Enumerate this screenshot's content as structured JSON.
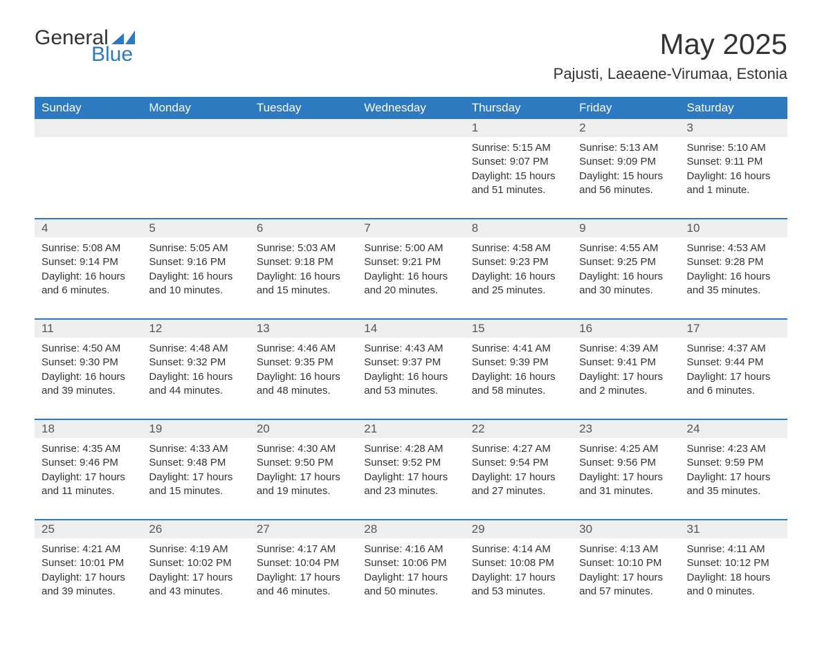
{
  "logo": {
    "part1": "General",
    "part2": "Blue"
  },
  "title": "May 2025",
  "location": "Pajusti, Laeaene-Virumaa, Estonia",
  "colors": {
    "header_bg": "#2e7ac0",
    "header_text": "#ffffff",
    "daynum_bg": "#eeeeee",
    "daynum_text": "#555555",
    "body_text": "#333333",
    "row_border": "#2e7ac0",
    "logo_accent": "#2e7ac0",
    "background": "#ffffff"
  },
  "day_headers": [
    "Sunday",
    "Monday",
    "Tuesday",
    "Wednesday",
    "Thursday",
    "Friday",
    "Saturday"
  ],
  "weeks": [
    [
      null,
      null,
      null,
      null,
      {
        "n": "1",
        "sunrise": "5:15 AM",
        "sunset": "9:07 PM",
        "daylight": "15 hours and 51 minutes."
      },
      {
        "n": "2",
        "sunrise": "5:13 AM",
        "sunset": "9:09 PM",
        "daylight": "15 hours and 56 minutes."
      },
      {
        "n": "3",
        "sunrise": "5:10 AM",
        "sunset": "9:11 PM",
        "daylight": "16 hours and 1 minute."
      }
    ],
    [
      {
        "n": "4",
        "sunrise": "5:08 AM",
        "sunset": "9:14 PM",
        "daylight": "16 hours and 6 minutes."
      },
      {
        "n": "5",
        "sunrise": "5:05 AM",
        "sunset": "9:16 PM",
        "daylight": "16 hours and 10 minutes."
      },
      {
        "n": "6",
        "sunrise": "5:03 AM",
        "sunset": "9:18 PM",
        "daylight": "16 hours and 15 minutes."
      },
      {
        "n": "7",
        "sunrise": "5:00 AM",
        "sunset": "9:21 PM",
        "daylight": "16 hours and 20 minutes."
      },
      {
        "n": "8",
        "sunrise": "4:58 AM",
        "sunset": "9:23 PM",
        "daylight": "16 hours and 25 minutes."
      },
      {
        "n": "9",
        "sunrise": "4:55 AM",
        "sunset": "9:25 PM",
        "daylight": "16 hours and 30 minutes."
      },
      {
        "n": "10",
        "sunrise": "4:53 AM",
        "sunset": "9:28 PM",
        "daylight": "16 hours and 35 minutes."
      }
    ],
    [
      {
        "n": "11",
        "sunrise": "4:50 AM",
        "sunset": "9:30 PM",
        "daylight": "16 hours and 39 minutes."
      },
      {
        "n": "12",
        "sunrise": "4:48 AM",
        "sunset": "9:32 PM",
        "daylight": "16 hours and 44 minutes."
      },
      {
        "n": "13",
        "sunrise": "4:46 AM",
        "sunset": "9:35 PM",
        "daylight": "16 hours and 48 minutes."
      },
      {
        "n": "14",
        "sunrise": "4:43 AM",
        "sunset": "9:37 PM",
        "daylight": "16 hours and 53 minutes."
      },
      {
        "n": "15",
        "sunrise": "4:41 AM",
        "sunset": "9:39 PM",
        "daylight": "16 hours and 58 minutes."
      },
      {
        "n": "16",
        "sunrise": "4:39 AM",
        "sunset": "9:41 PM",
        "daylight": "17 hours and 2 minutes."
      },
      {
        "n": "17",
        "sunrise": "4:37 AM",
        "sunset": "9:44 PM",
        "daylight": "17 hours and 6 minutes."
      }
    ],
    [
      {
        "n": "18",
        "sunrise": "4:35 AM",
        "sunset": "9:46 PM",
        "daylight": "17 hours and 11 minutes."
      },
      {
        "n": "19",
        "sunrise": "4:33 AM",
        "sunset": "9:48 PM",
        "daylight": "17 hours and 15 minutes."
      },
      {
        "n": "20",
        "sunrise": "4:30 AM",
        "sunset": "9:50 PM",
        "daylight": "17 hours and 19 minutes."
      },
      {
        "n": "21",
        "sunrise": "4:28 AM",
        "sunset": "9:52 PM",
        "daylight": "17 hours and 23 minutes."
      },
      {
        "n": "22",
        "sunrise": "4:27 AM",
        "sunset": "9:54 PM",
        "daylight": "17 hours and 27 minutes."
      },
      {
        "n": "23",
        "sunrise": "4:25 AM",
        "sunset": "9:56 PM",
        "daylight": "17 hours and 31 minutes."
      },
      {
        "n": "24",
        "sunrise": "4:23 AM",
        "sunset": "9:59 PM",
        "daylight": "17 hours and 35 minutes."
      }
    ],
    [
      {
        "n": "25",
        "sunrise": "4:21 AM",
        "sunset": "10:01 PM",
        "daylight": "17 hours and 39 minutes."
      },
      {
        "n": "26",
        "sunrise": "4:19 AM",
        "sunset": "10:02 PM",
        "daylight": "17 hours and 43 minutes."
      },
      {
        "n": "27",
        "sunrise": "4:17 AM",
        "sunset": "10:04 PM",
        "daylight": "17 hours and 46 minutes."
      },
      {
        "n": "28",
        "sunrise": "4:16 AM",
        "sunset": "10:06 PM",
        "daylight": "17 hours and 50 minutes."
      },
      {
        "n": "29",
        "sunrise": "4:14 AM",
        "sunset": "10:08 PM",
        "daylight": "17 hours and 53 minutes."
      },
      {
        "n": "30",
        "sunrise": "4:13 AM",
        "sunset": "10:10 PM",
        "daylight": "17 hours and 57 minutes."
      },
      {
        "n": "31",
        "sunrise": "4:11 AM",
        "sunset": "10:12 PM",
        "daylight": "18 hours and 0 minutes."
      }
    ]
  ],
  "labels": {
    "sunrise_prefix": "Sunrise: ",
    "sunset_prefix": "Sunset: ",
    "daylight_prefix": "Daylight: "
  }
}
